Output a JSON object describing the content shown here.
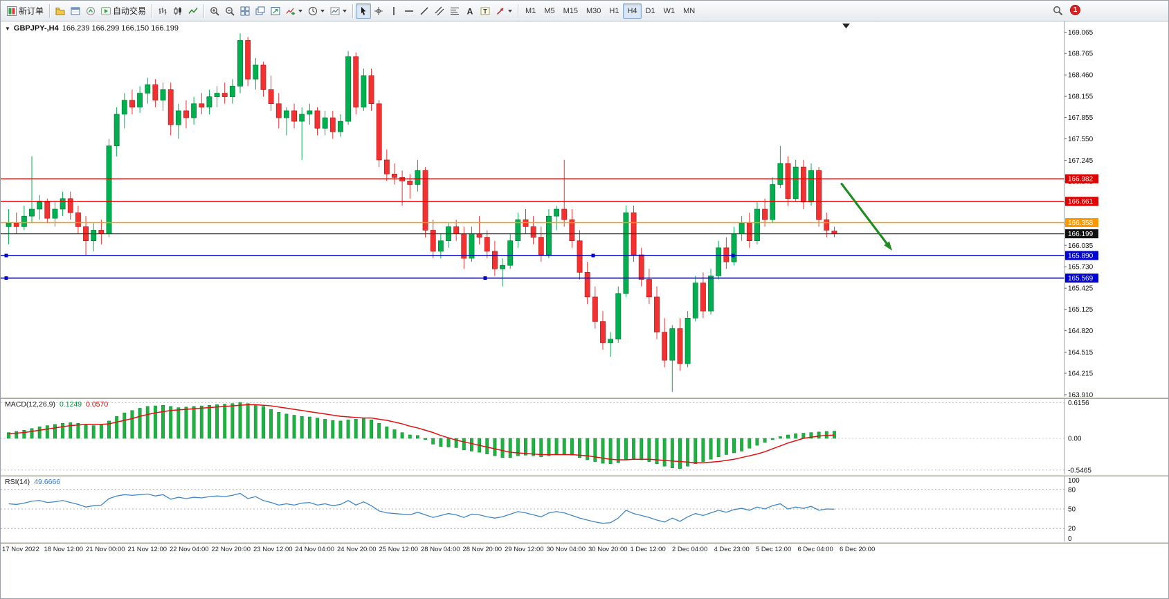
{
  "toolbar": {
    "items": [
      {
        "name": "new-order-button",
        "icon": "new-order",
        "label": "新订单"
      },
      {
        "sep": true
      },
      {
        "name": "profiles-button",
        "icon": "profiles"
      },
      {
        "name": "data-window-button",
        "icon": "data-window"
      },
      {
        "name": "market-watch-button",
        "icon": "market-watch"
      },
      {
        "name": "autotrading-button",
        "icon": "autotrading",
        "label": "自动交易"
      },
      {
        "sep": true
      },
      {
        "name": "bar-chart-button",
        "icon": "bars"
      },
      {
        "name": "candlestick-button",
        "icon": "candles"
      },
      {
        "name": "line-chart-button",
        "icon": "line"
      },
      {
        "sep": true
      },
      {
        "name": "zoom-in-button",
        "icon": "zoom-in"
      },
      {
        "name": "zoom-out-button",
        "icon": "zoom-out"
      },
      {
        "name": "tile-windows-button",
        "icon": "tile"
      },
      {
        "name": "cascade-windows-button",
        "icon": "cascade"
      },
      {
        "name": "arrange-charts-button",
        "icon": "arrange"
      },
      {
        "name": "indicators-button",
        "icon": "indicators",
        "dd": true
      },
      {
        "name": "periods-button",
        "icon": "clock",
        "dd": true
      },
      {
        "name": "templates-button",
        "icon": "template",
        "dd": true
      },
      {
        "sep": true
      },
      {
        "name": "cursor-button",
        "icon": "cursor",
        "active": true
      },
      {
        "name": "crosshair-button",
        "icon": "crosshair"
      },
      {
        "name": "vertical-line-button",
        "icon": "vline"
      },
      {
        "name": "horizontal-line-button",
        "icon": "hline"
      },
      {
        "name": "trendline-button",
        "icon": "trend"
      },
      {
        "name": "channel-button",
        "icon": "channel"
      },
      {
        "name": "fibonacci-button",
        "icon": "fibo"
      },
      {
        "name": "text-button",
        "icon": "text-a"
      },
      {
        "name": "text-label-button",
        "icon": "label-t"
      },
      {
        "name": "arrows-button",
        "icon": "arrows",
        "dd": true
      },
      {
        "sep": true
      }
    ],
    "timeframes": [
      "M1",
      "M5",
      "M15",
      "M30",
      "H1",
      "H4",
      "D1",
      "W1",
      "MN"
    ],
    "active_timeframe": "H4",
    "notification_count": "1"
  },
  "icons": {
    "chart_dropdown_icon": "▼"
  },
  "chart": {
    "title": {
      "symbol_period": "GBPJPY-,H4",
      "ohlc": "166.239 166.299 166.150 166.199"
    },
    "colors": {
      "up": "#00b050",
      "down": "#f43030",
      "up_stroke": "#00702c",
      "down_stroke": "#a51616"
    },
    "price_axis_ticks": [
      "169.065",
      "168.765",
      "168.460",
      "168.155",
      "167.855",
      "167.550",
      "167.245",
      "166.945",
      "166.640",
      "166.340",
      "166.035",
      "165.730",
      "165.425",
      "165.125",
      "164.820",
      "164.515",
      "164.215",
      "163.910"
    ],
    "price_labels": [
      {
        "text": "166.982",
        "color": "#e00000"
      },
      {
        "text": "166.661",
        "color": "#e00000"
      },
      {
        "text": "166.358",
        "color": "#ff9900"
      },
      {
        "text": "166.199",
        "color": "#111111"
      },
      {
        "text": "165.890",
        "color": "#0000d8"
      },
      {
        "text": "165.569",
        "color": "#0000d8"
      }
    ]
  },
  "macd": {
    "label": "MACD(12,26,9)",
    "value_main": "0.1249",
    "value_signal": "0.0570",
    "ticks": [
      "0.6156",
      "0.00",
      "-0.5465"
    ]
  },
  "rsi": {
    "label": "RSI(14)",
    "value": "49.6666",
    "ticks": [
      "100",
      "80",
      "50",
      "20",
      "0"
    ],
    "levels": [
      80,
      50,
      20
    ]
  },
  "time_axis": [
    "17 Nov 2022",
    "18 Nov 12:00",
    "21 Nov 00:00",
    "21 Nov 12:00",
    "22 Nov 04:00",
    "22 Nov 20:00",
    "23 Nov 12:00",
    "24 Nov 04:00",
    "24 Nov 20:00",
    "25 Nov 12:00",
    "28 Nov 04:00",
    "28 Nov 20:00",
    "29 Nov 12:00",
    "30 Nov 04:00",
    "30 Nov 20:00",
    "1 Dec 12:00",
    "2 Dec 04:00",
    "4 Dec 23:00",
    "5 Dec 12:00",
    "6 Dec 04:00",
    "6 Dec 20:00"
  ],
  "chart_data": {
    "type": "candlestick",
    "symbol": "GBPJPY-",
    "timeframe": "H4",
    "y_range": [
      163.88,
      169.22
    ],
    "ohlc": [
      [
        166.3,
        166.55,
        166.05,
        166.35
      ],
      [
        166.35,
        166.5,
        166.2,
        166.3
      ],
      [
        166.3,
        166.6,
        166.25,
        166.45
      ],
      [
        166.45,
        167.3,
        166.35,
        166.55
      ],
      [
        166.55,
        166.75,
        166.4,
        166.65
      ],
      [
        166.65,
        166.7,
        166.35,
        166.42
      ],
      [
        166.42,
        166.65,
        166.3,
        166.55
      ],
      [
        166.55,
        166.8,
        166.45,
        166.7
      ],
      [
        166.7,
        166.8,
        166.4,
        166.5
      ],
      [
        166.5,
        166.6,
        166.2,
        166.3
      ],
      [
        166.3,
        166.45,
        165.9,
        166.1
      ],
      [
        166.1,
        166.35,
        165.95,
        166.25
      ],
      [
        166.25,
        166.4,
        166.05,
        166.2
      ],
      [
        166.2,
        167.55,
        166.15,
        167.45
      ],
      [
        167.45,
        168.0,
        167.3,
        167.9
      ],
      [
        167.9,
        168.2,
        167.7,
        168.1
      ],
      [
        168.1,
        168.25,
        167.9,
        168.0
      ],
      [
        168.0,
        168.3,
        167.92,
        168.2
      ],
      [
        168.2,
        168.42,
        168.05,
        168.32
      ],
      [
        168.32,
        168.4,
        168.0,
        168.1
      ],
      [
        168.1,
        168.35,
        167.95,
        168.25
      ],
      [
        168.25,
        168.35,
        167.6,
        167.75
      ],
      [
        167.75,
        168.05,
        167.55,
        167.95
      ],
      [
        167.95,
        168.1,
        167.7,
        167.85
      ],
      [
        167.85,
        168.15,
        167.75,
        168.05
      ],
      [
        168.05,
        168.2,
        167.9,
        168.0
      ],
      [
        168.0,
        168.25,
        167.9,
        168.15
      ],
      [
        168.15,
        168.3,
        168.0,
        168.2
      ],
      [
        168.2,
        168.35,
        168.05,
        168.15
      ],
      [
        168.15,
        168.4,
        168.05,
        168.3
      ],
      [
        168.3,
        169.05,
        168.2,
        168.95
      ],
      [
        168.95,
        169.0,
        168.3,
        168.4
      ],
      [
        168.4,
        168.7,
        168.25,
        168.6
      ],
      [
        168.6,
        168.65,
        168.15,
        168.25
      ],
      [
        168.25,
        168.45,
        167.95,
        168.05
      ],
      [
        168.05,
        168.2,
        167.7,
        167.85
      ],
      [
        167.85,
        168.0,
        167.6,
        167.95
      ],
      [
        167.95,
        168.05,
        167.7,
        167.8
      ],
      [
        167.8,
        168.0,
        167.25,
        167.9
      ],
      [
        167.9,
        168.05,
        167.75,
        167.95
      ],
      [
        167.95,
        168.0,
        167.6,
        167.7
      ],
      [
        167.7,
        167.95,
        167.6,
        167.85
      ],
      [
        167.85,
        167.95,
        167.55,
        167.65
      ],
      [
        167.65,
        167.9,
        167.58,
        167.8
      ],
      [
        167.8,
        168.8,
        167.75,
        168.72
      ],
      [
        168.72,
        168.78,
        167.9,
        168.0
      ],
      [
        168.0,
        168.55,
        167.95,
        168.45
      ],
      [
        168.45,
        168.55,
        167.95,
        168.05
      ],
      [
        168.05,
        168.1,
        167.15,
        167.25
      ],
      [
        167.25,
        167.4,
        166.95,
        167.05
      ],
      [
        167.05,
        167.2,
        166.9,
        167.0
      ],
      [
        167.0,
        167.1,
        166.6,
        166.95
      ],
      [
        166.95,
        167.05,
        166.7,
        166.9
      ],
      [
        166.9,
        167.25,
        166.8,
        167.1
      ],
      [
        167.1,
        167.15,
        166.15,
        166.25
      ],
      [
        166.25,
        166.4,
        165.85,
        165.95
      ],
      [
        165.95,
        166.2,
        165.85,
        166.1
      ],
      [
        166.1,
        166.35,
        166.0,
        166.3
      ],
      [
        166.3,
        166.4,
        166.1,
        166.2
      ],
      [
        166.2,
        166.3,
        165.7,
        165.85
      ],
      [
        165.85,
        166.3,
        165.8,
        166.2
      ],
      [
        166.2,
        166.45,
        166.05,
        166.15
      ],
      [
        166.15,
        166.25,
        165.85,
        165.95
      ],
      [
        165.95,
        166.1,
        165.6,
        165.7
      ],
      [
        165.7,
        165.85,
        165.45,
        165.75
      ],
      [
        165.75,
        166.2,
        165.7,
        166.1
      ],
      [
        166.1,
        166.5,
        166.0,
        166.4
      ],
      [
        166.4,
        166.55,
        166.2,
        166.3
      ],
      [
        166.3,
        166.45,
        166.05,
        166.15
      ],
      [
        166.15,
        166.3,
        165.8,
        165.9
      ],
      [
        165.9,
        166.55,
        165.85,
        166.45
      ],
      [
        166.45,
        166.6,
        166.25,
        166.55
      ],
      [
        166.55,
        167.25,
        166.3,
        166.4
      ],
      [
        166.4,
        166.55,
        166.0,
        166.1
      ],
      [
        166.1,
        166.25,
        165.55,
        165.65
      ],
      [
        165.65,
        165.8,
        165.2,
        165.3
      ],
      [
        165.3,
        165.45,
        164.85,
        164.95
      ],
      [
        164.95,
        165.1,
        164.55,
        164.65
      ],
      [
        164.65,
        164.8,
        164.45,
        164.7
      ],
      [
        164.7,
        165.45,
        164.65,
        165.35
      ],
      [
        165.35,
        166.6,
        165.3,
        166.5
      ],
      [
        166.5,
        166.6,
        165.8,
        165.9
      ],
      [
        165.9,
        166.0,
        165.45,
        165.55
      ],
      [
        165.55,
        165.7,
        165.2,
        165.3
      ],
      [
        165.3,
        165.45,
        164.7,
        164.8
      ],
      [
        164.8,
        165.0,
        164.3,
        164.4
      ],
      [
        164.4,
        164.9,
        163.95,
        164.85
      ],
      [
        164.85,
        165.0,
        164.25,
        164.35
      ],
      [
        164.35,
        165.1,
        164.3,
        165.0
      ],
      [
        165.0,
        165.6,
        164.95,
        165.5
      ],
      [
        165.5,
        165.65,
        165.0,
        165.1
      ],
      [
        165.1,
        165.7,
        165.05,
        165.6
      ],
      [
        165.6,
        166.1,
        165.55,
        166.0
      ],
      [
        166.0,
        166.15,
        165.7,
        165.8
      ],
      [
        165.8,
        166.3,
        165.75,
        166.2
      ],
      [
        166.2,
        166.45,
        166.1,
        166.35
      ],
      [
        166.35,
        166.5,
        166.0,
        166.1
      ],
      [
        166.1,
        166.65,
        166.05,
        166.55
      ],
      [
        166.55,
        166.7,
        166.3,
        166.4
      ],
      [
        166.4,
        167.0,
        166.35,
        166.9
      ],
      [
        166.9,
        167.45,
        166.85,
        167.2
      ],
      [
        167.2,
        167.3,
        166.6,
        166.7
      ],
      [
        166.7,
        167.25,
        166.65,
        167.15
      ],
      [
        167.15,
        167.25,
        166.55,
        166.65
      ],
      [
        166.65,
        167.2,
        166.6,
        167.1
      ],
      [
        167.1,
        167.15,
        166.3,
        166.4
      ],
      [
        166.4,
        166.5,
        166.15,
        166.25
      ],
      [
        166.239,
        166.299,
        166.15,
        166.199
      ]
    ],
    "hlines": [
      {
        "price": 166.982,
        "color": "#e00000",
        "width": 1.4
      },
      {
        "price": 166.661,
        "color": "#e00000",
        "width": 1.4
      },
      {
        "price": 166.358,
        "color": "#ff9900",
        "width": 1.6
      },
      {
        "price": 166.199,
        "color": "#333333",
        "width": 1.2
      },
      {
        "price": 165.89,
        "color": "#0000d8",
        "width": 1.6,
        "handles": [
          8,
          856,
          1058
        ]
      },
      {
        "price": 165.569,
        "color": "#0000d8",
        "width": 1.6,
        "handles": [
          8,
          700
        ]
      }
    ],
    "arrow": {
      "x1_frac": 0.79,
      "price1": 166.92,
      "x2_frac": 0.838,
      "price2": 165.96,
      "color": "#1f8c1f"
    },
    "macd_range": [
      -0.62,
      0.68
    ],
    "macd_hist": [
      0.1,
      0.12,
      0.14,
      0.17,
      0.2,
      0.22,
      0.24,
      0.26,
      0.27,
      0.26,
      0.24,
      0.22,
      0.24,
      0.3,
      0.38,
      0.44,
      0.48,
      0.52,
      0.55,
      0.56,
      0.57,
      0.55,
      0.53,
      0.54,
      0.55,
      0.56,
      0.57,
      0.58,
      0.59,
      0.6,
      0.62,
      0.6,
      0.58,
      0.55,
      0.5,
      0.45,
      0.42,
      0.4,
      0.38,
      0.37,
      0.35,
      0.33,
      0.31,
      0.3,
      0.32,
      0.33,
      0.34,
      0.32,
      0.26,
      0.2,
      0.15,
      0.1,
      0.06,
      0.05,
      -0.02,
      -0.1,
      -0.14,
      -0.15,
      -0.16,
      -0.2,
      -0.22,
      -0.24,
      -0.27,
      -0.3,
      -0.33,
      -0.33,
      -0.3,
      -0.29,
      -0.3,
      -0.32,
      -0.3,
      -0.28,
      -0.27,
      -0.29,
      -0.33,
      -0.37,
      -0.4,
      -0.43,
      -0.44,
      -0.42,
      -0.37,
      -0.35,
      -0.37,
      -0.4,
      -0.44,
      -0.48,
      -0.51,
      -0.52,
      -0.48,
      -0.44,
      -0.4,
      -0.36,
      -0.32,
      -0.28,
      -0.25,
      -0.22,
      -0.17,
      -0.12,
      -0.07,
      -0.02,
      0.03,
      0.06,
      0.08,
      0.09,
      0.1,
      0.11,
      0.12,
      0.1249
    ],
    "macd_signal": [
      0.08,
      0.09,
      0.1,
      0.12,
      0.14,
      0.16,
      0.18,
      0.2,
      0.22,
      0.23,
      0.24,
      0.24,
      0.24,
      0.25,
      0.28,
      0.31,
      0.34,
      0.38,
      0.41,
      0.44,
      0.46,
      0.48,
      0.49,
      0.5,
      0.51,
      0.52,
      0.53,
      0.54,
      0.55,
      0.56,
      0.57,
      0.58,
      0.58,
      0.57,
      0.56,
      0.54,
      0.52,
      0.5,
      0.48,
      0.46,
      0.44,
      0.42,
      0.4,
      0.38,
      0.37,
      0.36,
      0.35,
      0.35,
      0.33,
      0.31,
      0.28,
      0.25,
      0.21,
      0.18,
      0.14,
      0.1,
      0.05,
      0.01,
      -0.03,
      -0.06,
      -0.09,
      -0.12,
      -0.15,
      -0.18,
      -0.21,
      -0.24,
      -0.25,
      -0.26,
      -0.27,
      -0.28,
      -0.28,
      -0.28,
      -0.28,
      -0.28,
      -0.29,
      -0.3,
      -0.32,
      -0.34,
      -0.36,
      -0.37,
      -0.37,
      -0.36,
      -0.36,
      -0.36,
      -0.37,
      -0.38,
      -0.39,
      -0.4,
      -0.41,
      -0.42,
      -0.42,
      -0.41,
      -0.4,
      -0.38,
      -0.36,
      -0.33,
      -0.3,
      -0.27,
      -0.23,
      -0.18,
      -0.13,
      -0.08,
      -0.04,
      0.0,
      0.02,
      0.04,
      0.05,
      0.057
    ],
    "rsi_values": [
      58,
      57,
      59,
      62,
      63,
      60,
      61,
      63,
      60,
      57,
      53,
      55,
      56,
      66,
      70,
      72,
      71,
      72,
      73,
      70,
      72,
      65,
      68,
      66,
      68,
      67,
      69,
      70,
      69,
      71,
      74,
      66,
      69,
      63,
      60,
      56,
      58,
      56,
      59,
      60,
      56,
      58,
      55,
      57,
      63,
      56,
      61,
      55,
      47,
      44,
      43,
      42,
      41,
      45,
      41,
      37,
      40,
      43,
      41,
      37,
      42,
      41,
      38,
      36,
      38,
      42,
      46,
      44,
      41,
      38,
      44,
      46,
      44,
      40,
      36,
      33,
      30,
      28,
      29,
      36,
      48,
      43,
      40,
      37,
      33,
      30,
      36,
      31,
      38,
      43,
      40,
      44,
      48,
      45,
      49,
      51,
      48,
      53,
      50,
      55,
      58,
      50,
      53,
      51,
      54,
      48,
      50,
      49.67
    ]
  }
}
